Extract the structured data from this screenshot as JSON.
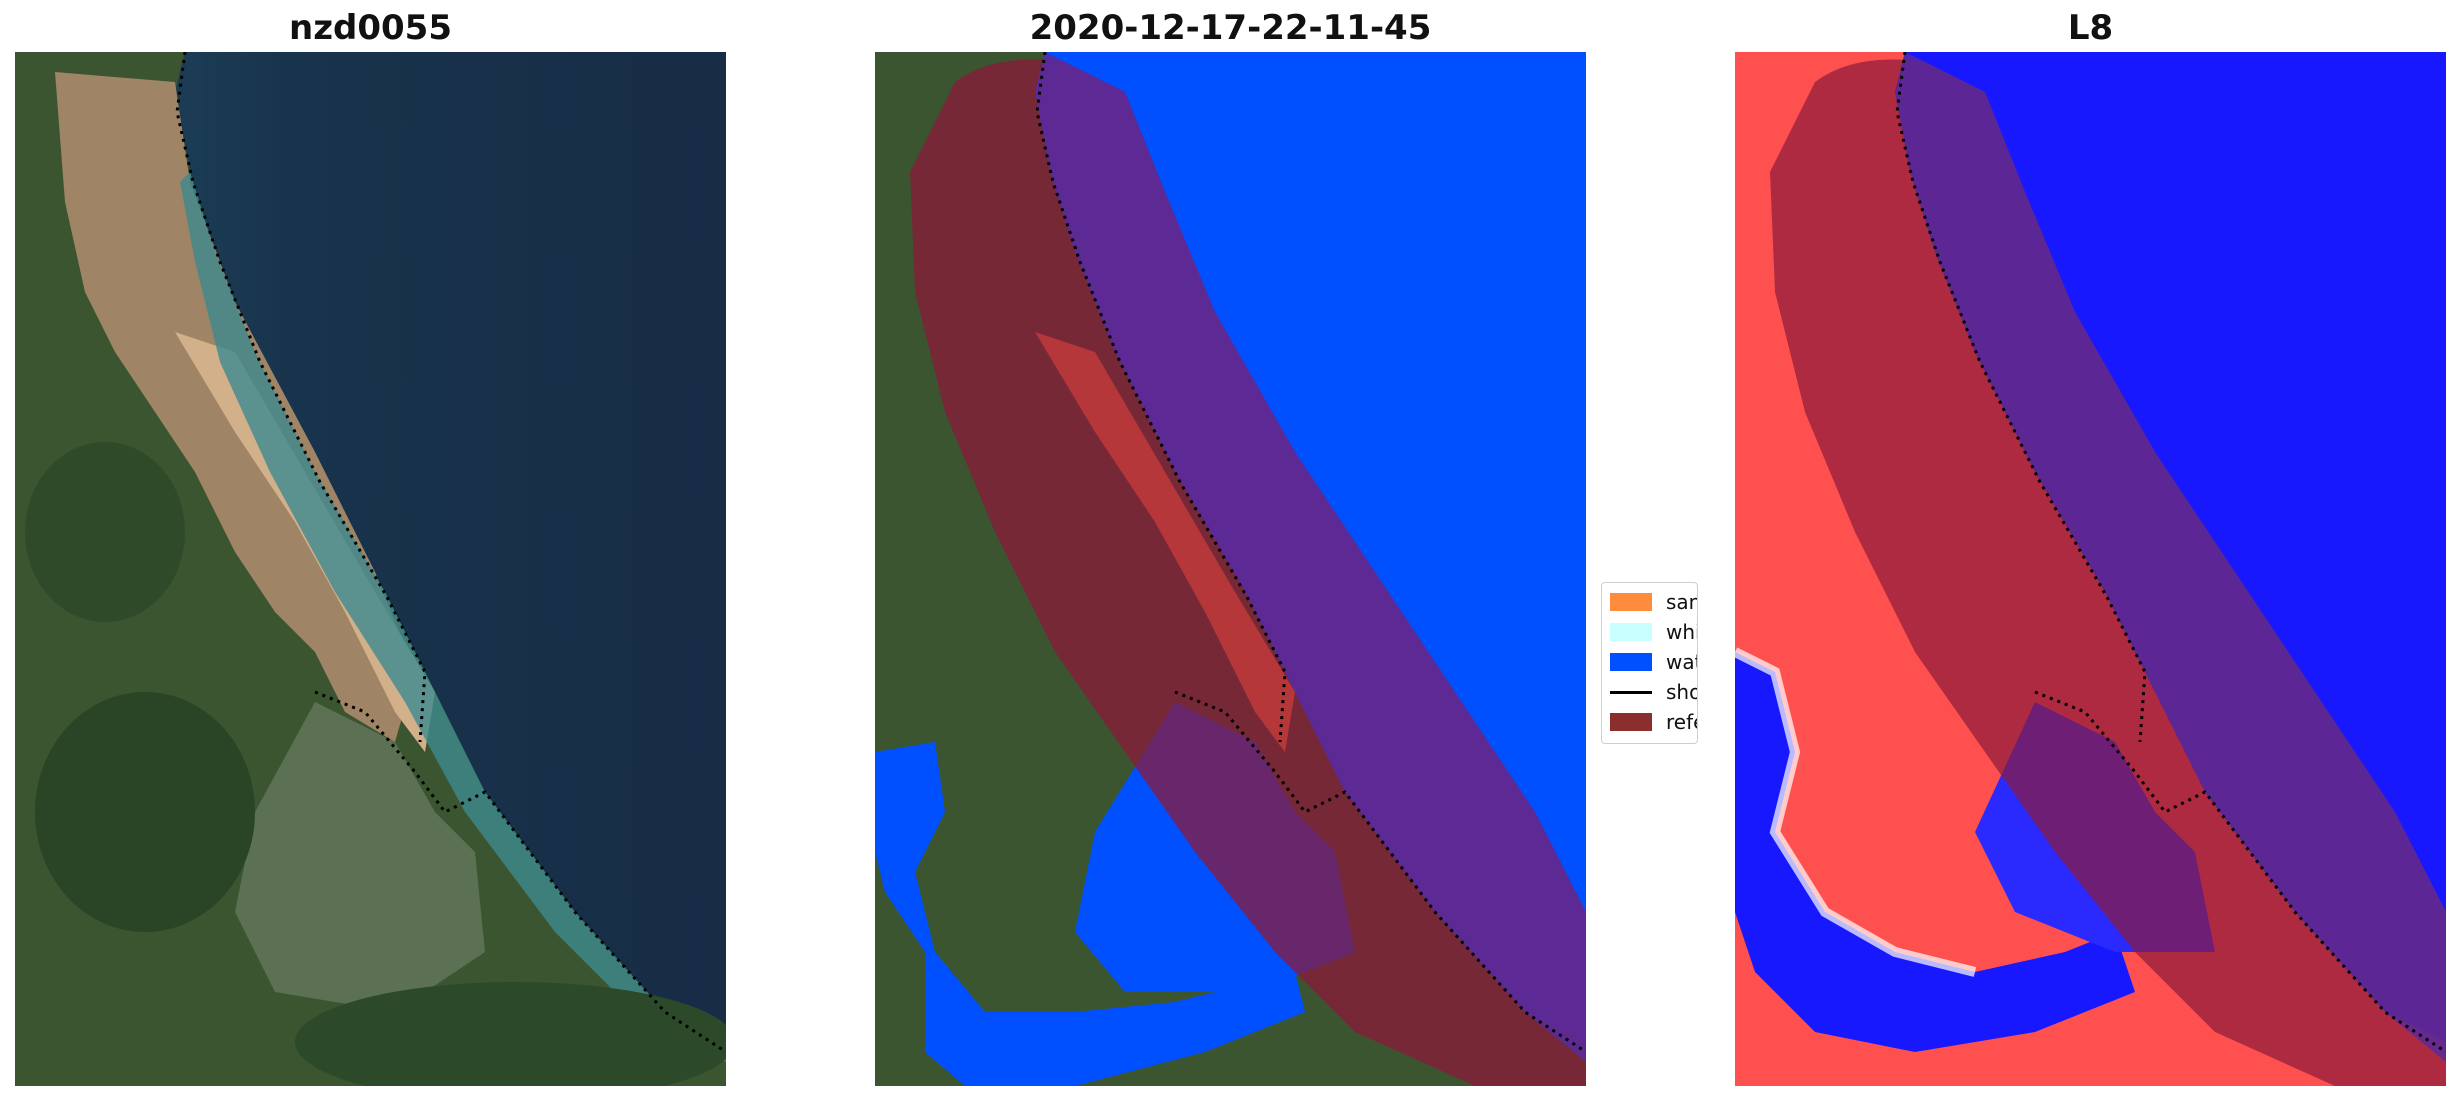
{
  "panels": [
    {
      "title": "nzd0055"
    },
    {
      "title": "2020-12-17-22-11-45"
    },
    {
      "title": "L8"
    }
  ],
  "legend": {
    "items": [
      {
        "label": "sand",
        "color": "#ff8c3c"
      },
      {
        "label": "whitewater",
        "color": "#c8ffff"
      },
      {
        "label": "water",
        "color": "#0050ff"
      },
      {
        "label": "shoreline",
        "color": "#000000"
      },
      {
        "label": "reference",
        "color": "#8b2e2e"
      }
    ]
  },
  "colors": {
    "ocean": "#17304a",
    "land": "#3a5a2e",
    "sand": "#c9a27a",
    "water_class": "#0050ff",
    "reference_overlay": "#8b1a3a",
    "index_positive": "#ff3030",
    "index_negative": "#1818ff"
  }
}
